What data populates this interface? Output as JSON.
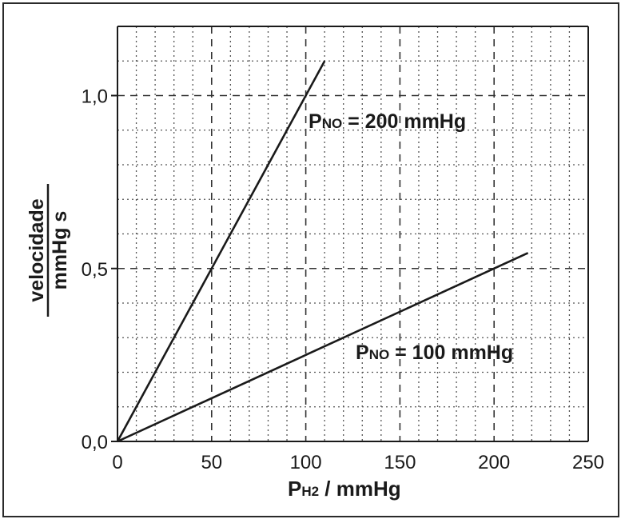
{
  "chart_data": {
    "type": "line",
    "xlabel": {
      "main": "P",
      "sub": "H2",
      "rest": " / mmHg"
    },
    "ylabel": {
      "numerator": "velocidade",
      "denominator": "mmHg s"
    },
    "xlim": [
      0,
      250
    ],
    "ylim": [
      0,
      1.2
    ],
    "xticks": [
      {
        "value": 0,
        "label": "0"
      },
      {
        "value": 50,
        "label": "50"
      },
      {
        "value": 100,
        "label": "100"
      },
      {
        "value": 150,
        "label": "150"
      },
      {
        "value": 200,
        "label": "200"
      },
      {
        "value": 250,
        "label": "250"
      }
    ],
    "yticks": [
      {
        "value": 0,
        "label": "0,0"
      },
      {
        "value": 0.5,
        "label": "0,5"
      },
      {
        "value": 1.0,
        "label": "1,0"
      }
    ],
    "grid": true,
    "series": [
      {
        "label_main": "P",
        "label_sub": "NO",
        "label_rest": " = 200 mmHg",
        "points": [
          [
            0,
            0
          ],
          [
            110,
            1.1
          ]
        ]
      },
      {
        "label_main": "P",
        "label_sub": "NO",
        "label_rest": " = 100 mmHg",
        "points": [
          [
            0,
            0
          ],
          [
            218,
            0.545
          ]
        ]
      }
    ]
  }
}
